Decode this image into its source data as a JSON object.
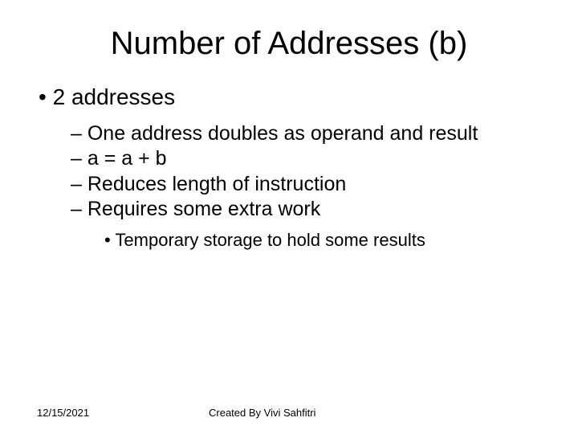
{
  "slide": {
    "title": "Number of Addresses (b)",
    "bullet_level1": "2 addresses",
    "bullets_level2": {
      "b1": "One address doubles as operand and result",
      "b2": "a = a + b",
      "b3": "Reduces length of instruction",
      "b4": "Requires some extra work"
    },
    "bullet_level3": "Temporary storage to hold some results",
    "footer": {
      "date": "12/15/2021",
      "author": "Created By Vivi Sahfitri"
    },
    "styling": {
      "background_color": "#ffffff",
      "text_color": "#000000",
      "title_fontsize": 40,
      "level1_fontsize": 28,
      "level2_fontsize": 25,
      "level3_fontsize": 22,
      "footer_fontsize": 13,
      "font_family": "Arial"
    }
  }
}
